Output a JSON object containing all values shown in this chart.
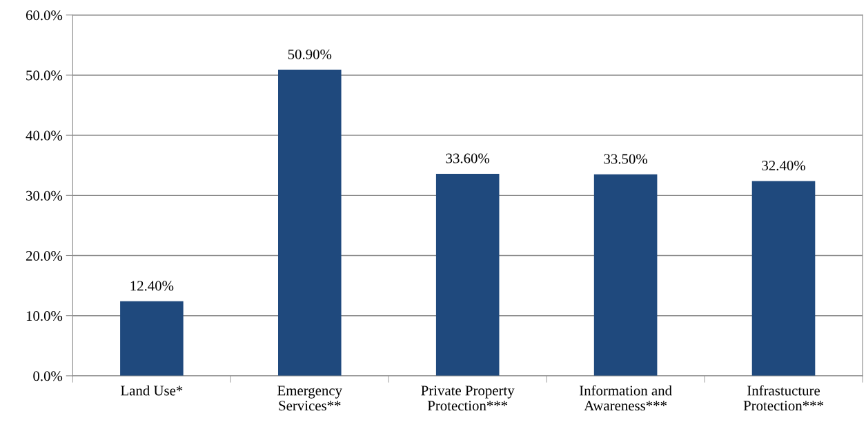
{
  "chart_data": {
    "type": "bar",
    "categories": [
      "Land Use*",
      "Emergency\nServices**",
      "Private Property\nProtection***",
      "Information and\nAwareness***",
      "Infrastucture\nProtection***"
    ],
    "values": [
      12.4,
      50.9,
      33.6,
      33.5,
      32.4
    ],
    "value_labels": [
      "12.40%",
      "50.90%",
      "33.60%",
      "33.50%",
      "32.40%"
    ],
    "color": "#1f497d",
    "ylim": [
      0,
      60
    ],
    "yticks": [
      {
        "value": 0,
        "label": "0.0%"
      },
      {
        "value": 10,
        "label": "10.0%"
      },
      {
        "value": 20,
        "label": "20.0%"
      },
      {
        "value": 30,
        "label": "30.0%"
      },
      {
        "value": 40,
        "label": "40.0%"
      },
      {
        "value": 50,
        "label": "50.0%"
      },
      {
        "value": 60,
        "label": "60.0%"
      }
    ],
    "grid": "y"
  }
}
